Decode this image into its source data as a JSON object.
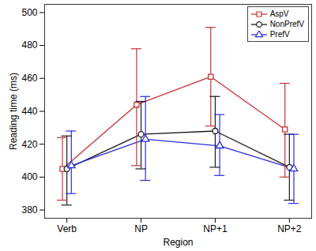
{
  "chart_data": {
    "type": "line",
    "x_label": "Region",
    "y_label": "Reading time (ms)",
    "categories": [
      "Verb",
      "NP",
      "NP+1",
      "NP+2"
    ],
    "ylim": [
      375,
      505
    ],
    "yticks": [
      380,
      400,
      420,
      440,
      460,
      480,
      500
    ],
    "grid": false,
    "legend": "top-right",
    "series": [
      {
        "name": "AspV",
        "color": "#c8303a",
        "marker": "square",
        "values": [
          405,
          444,
          461,
          429
        ],
        "error_low": [
          386,
          407,
          431,
          400
        ],
        "error_high": [
          424,
          478,
          491,
          457
        ]
      },
      {
        "name": "NonPrefV",
        "color": "#1a1a1a",
        "marker": "circle",
        "values": [
          405,
          426,
          428,
          406
        ],
        "error_low": [
          383,
          405,
          406,
          386
        ],
        "error_high": [
          425,
          446,
          449,
          426
        ]
      },
      {
        "name": "PrefV",
        "color": "#2b2be0",
        "marker": "triangle",
        "values": [
          407,
          423,
          419,
          405
        ],
        "error_low": [
          390,
          398,
          401,
          384
        ],
        "error_high": [
          428,
          449,
          438,
          426
        ]
      }
    ]
  }
}
